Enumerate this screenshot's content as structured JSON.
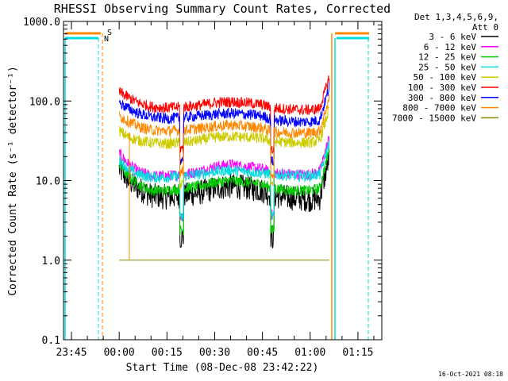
{
  "chart_data": {
    "type": "line",
    "title": "RHESSI Observing Summary Count Rates, Corrected",
    "xlabel": "Start Time (08-Dec-08 23:42:22)",
    "ylabel": "Corrected Count Rate (s⁻¹ detector⁻¹)",
    "yscale": "log",
    "ylim": [
      0.1,
      1000
    ],
    "xlim_minutes": [
      -17.5,
      82.5
    ],
    "x_unit": "minutes after 00:00 (09-Dec-08)",
    "x_tick_labels": [
      "23:45",
      "00:00",
      "00:15",
      "00:30",
      "00:45",
      "01:00",
      "01:15"
    ],
    "x_tick_minutes": [
      -15,
      0,
      15,
      30,
      45,
      60,
      75
    ],
    "y_tick_labels": [
      "0.1",
      "1.0",
      "10.0",
      "100.0",
      "1000.0"
    ],
    "y_tick_values": [
      0.1,
      1,
      10,
      100,
      1000
    ],
    "legend": {
      "header": [
        "Det 1,3,4,5,6,9,",
        "Att 0"
      ],
      "position": "right"
    },
    "series": [
      {
        "name": "3 - 6 keV",
        "color": "#000000",
        "x": [
          0,
          3,
          6,
          10,
          15,
          20,
          25,
          30,
          35,
          40,
          45,
          48,
          55,
          60,
          63,
          66
        ],
        "y": [
          14,
          10,
          8,
          6.5,
          6.2,
          6.5,
          7,
          8,
          8.5,
          8.2,
          7.5,
          6.5,
          6,
          5.8,
          6,
          20
        ]
      },
      {
        "name": "6 - 12 keV",
        "color": "#ff00ff",
        "x": [
          0,
          3,
          6,
          10,
          15,
          20,
          25,
          30,
          35,
          40,
          45,
          48,
          55,
          60,
          63,
          66
        ],
        "y": [
          22,
          16,
          13,
          11.5,
          11.5,
          12,
          13,
          15,
          16,
          15,
          14,
          12.5,
          12,
          12,
          13,
          35
        ]
      },
      {
        "name": "12 - 25 keV",
        "color": "#00cc00",
        "x": [
          0,
          3,
          6,
          10,
          15,
          20,
          25,
          30,
          35,
          40,
          45,
          48,
          55,
          60,
          63,
          66
        ],
        "y": [
          16,
          11,
          9,
          7.5,
          7.5,
          8,
          8.5,
          9.5,
          10,
          9.5,
          9,
          8,
          7.5,
          7.5,
          8,
          25
        ]
      },
      {
        "name": "25 - 50 keV",
        "color": "#00dddd",
        "x": [
          0,
          3,
          6,
          10,
          15,
          20,
          25,
          30,
          35,
          40,
          45,
          48,
          55,
          60,
          63,
          66
        ],
        "y": [
          18,
          14,
          12,
          11,
          11,
          11.5,
          12,
          13,
          13.5,
          13,
          12.5,
          12,
          11.5,
          11.5,
          12,
          30
        ]
      },
      {
        "name": "50 - 100 keV",
        "color": "#cccc00",
        "x": [
          0,
          3,
          6,
          10,
          15,
          20,
          25,
          30,
          35,
          40,
          45,
          48,
          55,
          60,
          63,
          66
        ],
        "y": [
          42,
          35,
          32,
          30,
          29,
          30,
          32,
          35,
          36,
          35,
          34,
          31,
          30,
          30,
          32,
          80
        ]
      },
      {
        "name": "100 - 300 keV",
        "color": "#ff0000",
        "x": [
          0,
          3,
          6,
          10,
          15,
          20,
          25,
          30,
          35,
          40,
          45,
          48,
          55,
          60,
          63,
          66
        ],
        "y": [
          130,
          110,
          95,
          85,
          82,
          84,
          88,
          95,
          98,
          95,
          90,
          82,
          78,
          77,
          80,
          200
        ]
      },
      {
        "name": "300 - 800 keV",
        "color": "#0000ff",
        "x": [
          0,
          3,
          6,
          10,
          15,
          20,
          25,
          30,
          35,
          40,
          45,
          48,
          55,
          60,
          63,
          66
        ],
        "y": [
          95,
          80,
          70,
          63,
          60,
          62,
          65,
          68,
          70,
          68,
          65,
          58,
          55,
          55,
          58,
          150
        ]
      },
      {
        "name": "800 - 7000 keV",
        "color": "#ff8800",
        "x": [
          0,
          3,
          6,
          10,
          15,
          20,
          25,
          30,
          35,
          40,
          45,
          48,
          55,
          60,
          63,
          66
        ],
        "y": [
          65,
          55,
          48,
          43,
          42,
          43,
          45,
          48,
          50,
          48,
          46,
          41,
          40,
          40,
          42,
          110
        ]
      },
      {
        "name": "7000 - 15000 keV",
        "color": "#888800",
        "x": [
          0,
          3,
          6,
          10,
          15,
          20,
          25,
          30,
          35,
          40,
          45,
          48,
          55,
          60,
          63,
          66
        ],
        "y": [
          1,
          1,
          1,
          1,
          1,
          1,
          1,
          1,
          1,
          1,
          1,
          1,
          1,
          1,
          1,
          1
        ]
      }
    ],
    "flags": [
      {
        "name": "S",
        "color": "#ff8800"
      },
      {
        "name": "N",
        "color": "#00dddd"
      }
    ],
    "timestamp": "16-Oct-2021 08:18"
  }
}
